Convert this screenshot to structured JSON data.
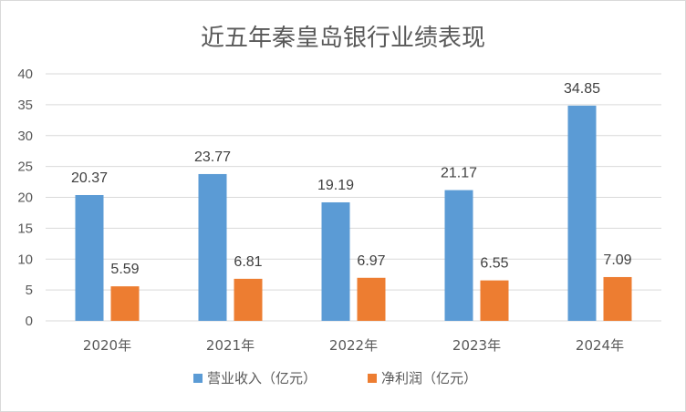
{
  "chart_data": {
    "type": "bar",
    "title": "近五年秦皇岛银行业绩表现",
    "categories": [
      "2020年",
      "2021年",
      "2022年",
      "2023年",
      "2024年"
    ],
    "series": [
      {
        "name": "营业收入（亿元）",
        "values": [
          20.37,
          23.77,
          19.19,
          21.17,
          34.85
        ],
        "color": "#5b9bd5"
      },
      {
        "name": "净利润（亿元）",
        "values": [
          5.59,
          6.81,
          6.97,
          6.55,
          7.09
        ],
        "color": "#ed7d31"
      }
    ],
    "data_labels": [
      [
        "20.37",
        "23.77",
        "19.19",
        "21.17",
        "34.85"
      ],
      [
        "5.59",
        "6.81",
        "6.97",
        "6.55",
        "7.09"
      ]
    ],
    "ylim": [
      0,
      40
    ],
    "yticks": [
      "0",
      "5",
      "10",
      "15",
      "20",
      "25",
      "30",
      "35",
      "40"
    ],
    "grid": true,
    "legend_position": "bottom"
  }
}
